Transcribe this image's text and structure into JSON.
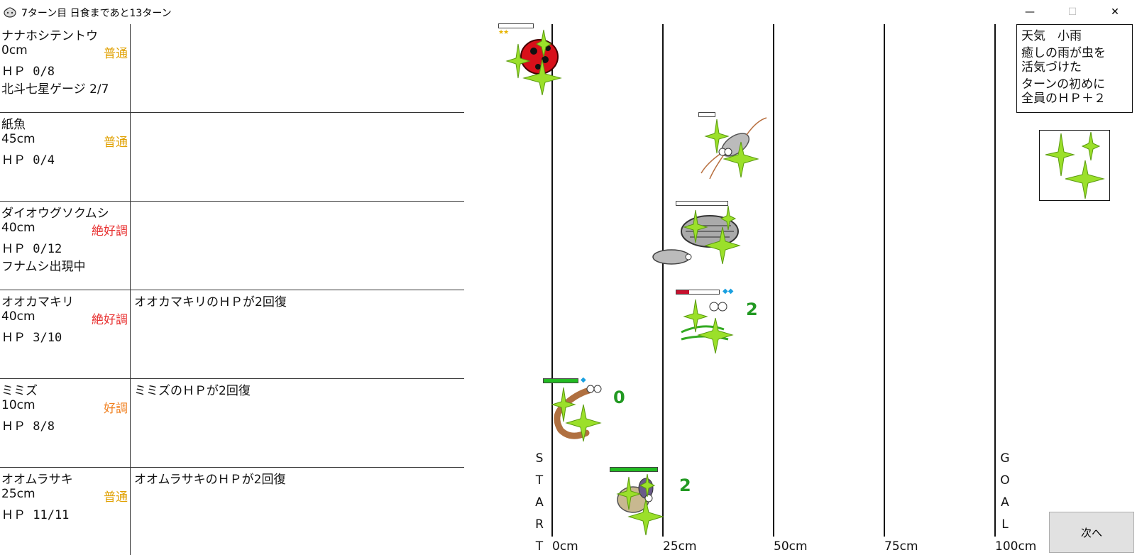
{
  "window": {
    "title": "7ターン目 日食まであと13ターン",
    "icon": "coin-pouch-icon",
    "min_label": "—",
    "max_label": "☐",
    "close_label": "✕"
  },
  "rows": [
    {
      "name": "ナナホシテントウ",
      "distance": "0cm",
      "condition": "普通",
      "hp": "ＨＰ 0/8",
      "extra": "北斗七星ゲージ 2/7",
      "message": ""
    },
    {
      "name": "紙魚",
      "distance": "45cm",
      "condition": "普通",
      "hp": "ＨＰ 0/4",
      "extra": "",
      "message": ""
    },
    {
      "name": "ダイオウグソクムシ",
      "distance": "40cm",
      "condition": "絶好調",
      "hp": "ＨＰ 0/12",
      "extra": "フナムシ出現中",
      "message": ""
    },
    {
      "name": "オオカマキリ",
      "distance": "40cm",
      "condition": "絶好調",
      "hp": "ＨＰ 3/10",
      "extra": "",
      "message": "オオカマキリのＨＰが2回復"
    },
    {
      "name": "ミミズ",
      "distance": "10cm",
      "condition": "好調",
      "hp": "ＨＰ 8/8",
      "extra": "",
      "message": "ミミズのＨＰが2回復"
    },
    {
      "name": "オオムラサキ",
      "distance": "25cm",
      "condition": "普通",
      "hp": "ＨＰ 11/11",
      "extra": "",
      "message": "オオムラサキのＨＰが2回復"
    }
  ],
  "track": {
    "axis_labels": [
      "0cm",
      "25cm",
      "50cm",
      "75cm",
      "100cm"
    ],
    "start_letters": [
      "S",
      "T",
      "A",
      "R",
      "T"
    ],
    "goal_letters": [
      "G",
      "O",
      "A",
      "L"
    ]
  },
  "weather": {
    "title": "天気　小雨",
    "desc_line1": "癒しの雨が虫を",
    "desc_line2": "活気づけた",
    "effect_line1": "ターンの初めに",
    "effect_line2": "全員のＨＰ＋２"
  },
  "next_button": {
    "label": "次へ"
  },
  "ranks": {
    "mantis": "2",
    "worm": "0",
    "butterfly": "2"
  },
  "hp_fill": {
    "ladybug": 0,
    "silverfish": 0,
    "isopod": 0,
    "mantis": 0.3,
    "worm": 1.0,
    "butterfly": 1.0
  },
  "colors": {
    "sparkle": "#9be02a",
    "hp_red": "#c8102e",
    "hp_green": "#22bb22",
    "good": "#f08020",
    "normal": "#e0a000",
    "best": "#e83030"
  }
}
